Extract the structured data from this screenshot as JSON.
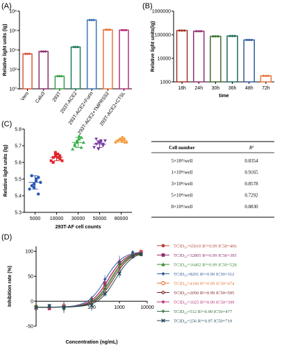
{
  "panels": {
    "a": "(A)",
    "b": "(B)",
    "c": "(C)",
    "d": "(D)"
  },
  "chart_data": [
    {
      "id": "A",
      "type": "bar",
      "scale": "log",
      "ylabel": "Relative light units (lg)",
      "xlabel": "",
      "ylim": [
        1,
        100000000
      ],
      "yticks": [
        "10⁰",
        "10²",
        "10⁴",
        "10⁶",
        "10⁸"
      ],
      "categories": [
        "Vero",
        "Calu3",
        "293T",
        "293T-ACE2",
        "293T-ACE2+Furin",
        "293T-ACE2+TMPRSS2",
        "293T-ACE2+CTSL"
      ],
      "values": [
        4000,
        7000,
        20,
        20000,
        12000000,
        1200000,
        1100000
      ],
      "colors": [
        "#d9553b",
        "#8e2e6e",
        "#3a9e46",
        "#1e7d5a",
        "#3b73b8",
        "#e8733a",
        "#b82f78"
      ]
    },
    {
      "id": "B",
      "type": "bar",
      "scale": "log",
      "ylabel": "Relative light units(lg)",
      "xlabel": "time",
      "ylim": [
        1000,
        1000000
      ],
      "yticks": [
        "1000",
        "10000",
        "100000",
        "1000000"
      ],
      "categories": [
        "18h",
        "24h",
        "30h",
        "36h",
        "48h",
        "72h"
      ],
      "values": [
        150000,
        140000,
        85000,
        88000,
        60000,
        1800
      ],
      "colors": [
        "#a43225",
        "#8e2e6e",
        "#3a6d2c",
        "#1e6a5a",
        "#2e5a9a",
        "#e8733a"
      ]
    },
    {
      "id": "C",
      "type": "scatter",
      "ylabel": "Relative light units (lg)",
      "xlabel": "293T-AF cell counts",
      "ylim": [
        5.3,
        5.8
      ],
      "yticks": [
        "5.3",
        "5.4",
        "5.5",
        "5.6",
        "5.7",
        "5.8"
      ],
      "categories": [
        "5000",
        "10000",
        "30000",
        "50000",
        "80000"
      ],
      "means": [
        5.48,
        5.63,
        5.72,
        5.71,
        5.73
      ],
      "sds": [
        0.04,
        0.02,
        0.03,
        0.02,
        0.01
      ],
      "points": [
        [
          5.44,
          5.46,
          5.47,
          5.5,
          5.51,
          5.52,
          5.45,
          5.49,
          5.41,
          5.48
        ],
        [
          5.61,
          5.63,
          5.64,
          5.65,
          5.62,
          5.6,
          5.66,
          5.63,
          5.64,
          5.61
        ],
        [
          5.68,
          5.7,
          5.72,
          5.74,
          5.75,
          5.71,
          5.73,
          5.76,
          5.69,
          5.72
        ],
        [
          5.69,
          5.71,
          5.72,
          5.73,
          5.7,
          5.74,
          5.68,
          5.72,
          5.71,
          5.73
        ],
        [
          5.72,
          5.73,
          5.74,
          5.75,
          5.72,
          5.73,
          5.74,
          5.73,
          5.74,
          5.72
        ]
      ],
      "colors": [
        "#2b59b5",
        "#e0242b",
        "#38b04a",
        "#7b3fa0",
        "#f39a3b"
      ],
      "table": {
        "headers": [
          "Cell number",
          "R²"
        ],
        "rows": [
          [
            "5×10³/well",
            "0.8354"
          ],
          [
            "1×10⁴/well",
            "0.9165"
          ],
          [
            "3×10⁴/well",
            "0.8578"
          ],
          [
            "5×10⁴/well",
            "0.7292"
          ],
          [
            "8×10⁴/well",
            "0.8830"
          ]
        ]
      }
    },
    {
      "id": "D",
      "type": "line",
      "scale": "log",
      "ylabel": "Inhibition rate (%)",
      "xlabel": "Concentration (ng/mL)",
      "xlim": [
        1,
        10000
      ],
      "ylim": [
        -50,
        110
      ],
      "yticks": [
        "-50",
        "0",
        "50",
        "100"
      ],
      "xticks": [
        "100",
        "1000",
        "10000"
      ],
      "series": [
        {
          "label": "TCID₅₀=65610 R²=0.99  IC50=406",
          "ic50": 406,
          "color": "#b5443a",
          "marker": "circle"
        },
        {
          "label": "TCID₅₀=32805 R²=0.99  IC50=395",
          "ic50": 395,
          "color": "#8e2e6e",
          "marker": "square"
        },
        {
          "label": "TCID₅₀=16402 R²=0.99  IC50=528",
          "ic50": 528,
          "color": "#3b8a2e",
          "marker": "triangle"
        },
        {
          "label": "TCID₅₀=8201 R²=0.99  IC50=312",
          "ic50": 312,
          "color": "#2e5a9a",
          "marker": "diamond"
        },
        {
          "label": "TCID₅₀=4100 R²=0.99  IC50=474",
          "ic50": 474,
          "color": "#e8733a",
          "marker": "circle-open"
        },
        {
          "label": "TCID₅₀=2050 R²=0.99  IC50=595",
          "ic50": 595,
          "color": "#7a1f1f",
          "marker": "x-square"
        },
        {
          "label": "TCID₅₀=1025 R²=0.99  IC50=399",
          "ic50": 399,
          "color": "#b82f78",
          "marker": "star"
        },
        {
          "label": "TCID₅₀=512 R²=0.99  IC50=477",
          "ic50": 477,
          "color": "#2e6a3a",
          "marker": "plus"
        },
        {
          "label": "TCID₅₀=256 R²=0.97  IC50=719",
          "ic50": 719,
          "color": "#1e4a5a",
          "marker": "x"
        }
      ],
      "x": [
        1,
        3,
        10,
        100,
        300,
        1000,
        3000,
        6000
      ]
    }
  ]
}
